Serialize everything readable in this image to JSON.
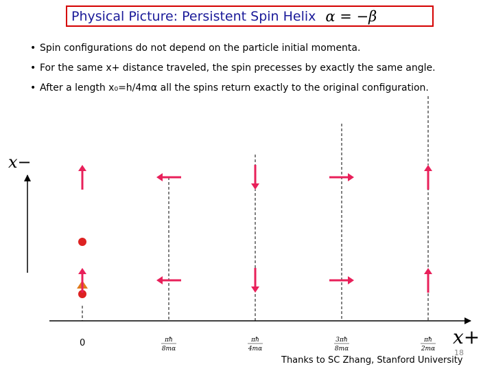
{
  "title": {
    "text": "Physical Picture: Persistent Spin Helix",
    "equation": "α = −β"
  },
  "bullets": [
    "Spin configurations do not depend on the particle initial momenta.",
    "For the same  x+ distance traveled, the spin precesses by exactly the  same angle.",
    "After a length  x₀=h/4mα  all the spins  return exactly to the original configuration."
  ],
  "axes": {
    "y_label": "x−",
    "x_label": "x+"
  },
  "ticks": [
    {
      "label": "0",
      "position": 0
    },
    {
      "label": "πħ/8mα",
      "position": 1
    },
    {
      "label": "πħ/4mα",
      "position": 2
    },
    {
      "label": "3πħ/8mα",
      "position": 3
    },
    {
      "label": "πħ/2mα",
      "position": 4
    }
  ],
  "tick_parts": [
    {
      "num": "",
      "den": ""
    },
    {
      "num": "πħ",
      "den": "8mα"
    },
    {
      "num": "πħ",
      "den": "4mα"
    },
    {
      "num": "3πħ",
      "den": "8mα"
    },
    {
      "num": "πħ",
      "den": "2mα"
    }
  ],
  "spin_rows": [
    {
      "row": "lower",
      "angles_deg": [
        90,
        180,
        270,
        0,
        90
      ]
    },
    {
      "row": "upper",
      "angles_deg": [
        90,
        180,
        270,
        0,
        90
      ]
    }
  ],
  "colors": {
    "arrow": "#e8205a",
    "particle": "#dd2222",
    "title_border": "#d40000",
    "title_text": "#1a1a99"
  },
  "credit": "Thanks to SC Zhang, Stanford University",
  "page_number": "18"
}
